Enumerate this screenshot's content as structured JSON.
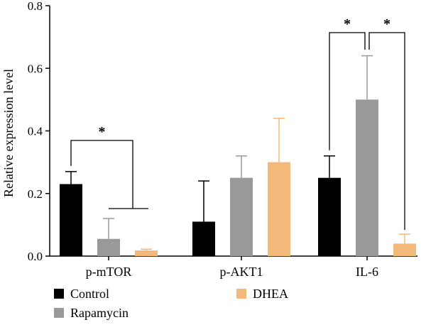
{
  "chart_data": {
    "type": "bar",
    "title": "",
    "xlabel": "",
    "ylabel": "Relative expression level",
    "ylim": [
      0,
      0.8
    ],
    "yticks": [
      "0.0",
      "0.2",
      "0.4",
      "0.6",
      "0.8"
    ],
    "categories": [
      "p-mTOR",
      "p-AKT1",
      "IL-6"
    ],
    "series": [
      {
        "name": "Control",
        "color": "#000000",
        "values": [
          0.23,
          0.11,
          0.25
        ],
        "errors": [
          0.04,
          0.13,
          0.07
        ]
      },
      {
        "name": "Rapamycin",
        "color": "#999999",
        "values": [
          0.055,
          0.25,
          0.5
        ],
        "errors": [
          0.065,
          0.07,
          0.14
        ]
      },
      {
        "name": "DHEA",
        "color": "#F2B97B",
        "values": [
          0.018,
          0.3,
          0.04
        ],
        "errors": [
          0.004,
          0.14,
          0.03
        ]
      }
    ],
    "significance": [
      {
        "category": "p-mTOR",
        "from": "Control",
        "to": "Rapamycin + DHEA",
        "label": "*"
      },
      {
        "category": "IL-6",
        "from": "Control",
        "to": "Rapamycin",
        "label": "*"
      },
      {
        "category": "IL-6",
        "from": "Rapamycin",
        "to": "DHEA",
        "label": "*"
      }
    ],
    "legend_position": "bottom",
    "grid": false
  }
}
